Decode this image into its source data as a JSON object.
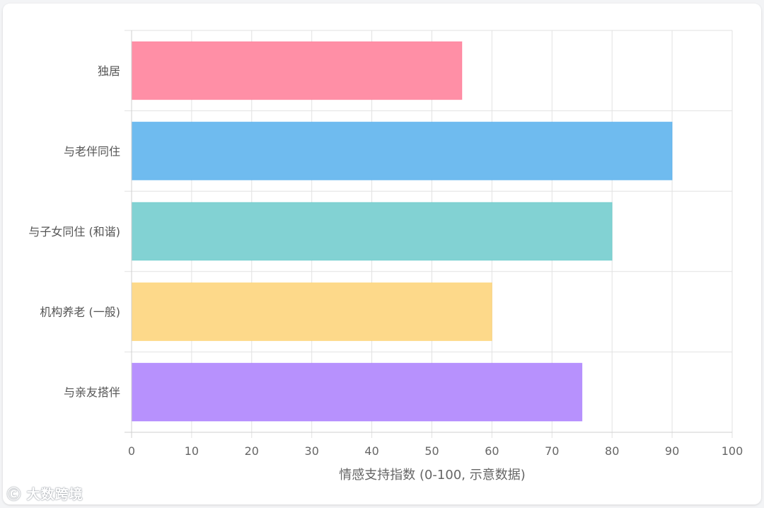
{
  "chart_data": {
    "type": "bar",
    "orientation": "horizontal",
    "categories": [
      "独居",
      "与老伴同住",
      "与子女同住 (和谐)",
      "机构养老 (一般)",
      "与亲友搭伴"
    ],
    "values": [
      55,
      90,
      80,
      60,
      75
    ],
    "colors": [
      "#ff8fa6",
      "#6fbbef",
      "#82d2d3",
      "#fdd98a",
      "#b791fd"
    ],
    "border_colors": [
      "#ff6384",
      "#36a2eb",
      "#4bc0c0",
      "#ffcd56",
      "#9966ff"
    ],
    "xlabel": "情感支持指数 (0-100, 示意数据)",
    "xlim": [
      0,
      100
    ],
    "xticks": [
      "0",
      "10",
      "20",
      "30",
      "40",
      "50",
      "60",
      "70",
      "80",
      "90",
      "100"
    ],
    "grid": true,
    "legend": "none"
  },
  "watermark": {
    "icon": "logo-icon",
    "text": "大数跨境"
  }
}
